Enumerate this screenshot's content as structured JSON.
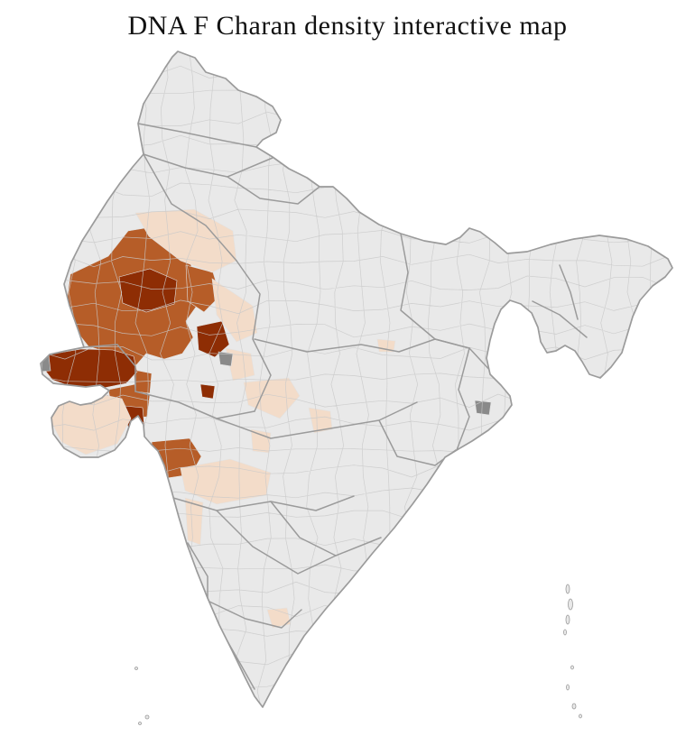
{
  "page": {
    "title": "DNA F Charan density interactive map"
  },
  "map": {
    "label": "india-district-density-choropleth",
    "colors": {
      "sea": "#ffffff",
      "land": "#e9e9e9",
      "district_line": "#c9c9c9",
      "state_line": "#9b9b9b",
      "outline": "#9b9b9b"
    },
    "palette": {
      "low": "#f3dcc9",
      "medium": "#b65d28",
      "high": "#8e2d04",
      "other": "#8a8a8a"
    },
    "density_levels": [
      "low",
      "medium",
      "high",
      "other"
    ],
    "regions": {
      "r1": "medium",
      "r2": "medium",
      "r3": "medium",
      "r4": "medium",
      "r5": "medium",
      "r6": "high",
      "r7": "high",
      "r8": "high",
      "r9": "high",
      "r10": "high",
      "r11": "high",
      "r12": "high",
      "r13": "high",
      "r14": "low",
      "r15": "low",
      "r16": "low",
      "r17": "low",
      "r18": "low",
      "r19": "low",
      "r20": "low",
      "r21": "low",
      "r22": "low",
      "r23": "low",
      "r24": "low",
      "r25": "other",
      "r26": "other",
      "r27": "other"
    }
  }
}
